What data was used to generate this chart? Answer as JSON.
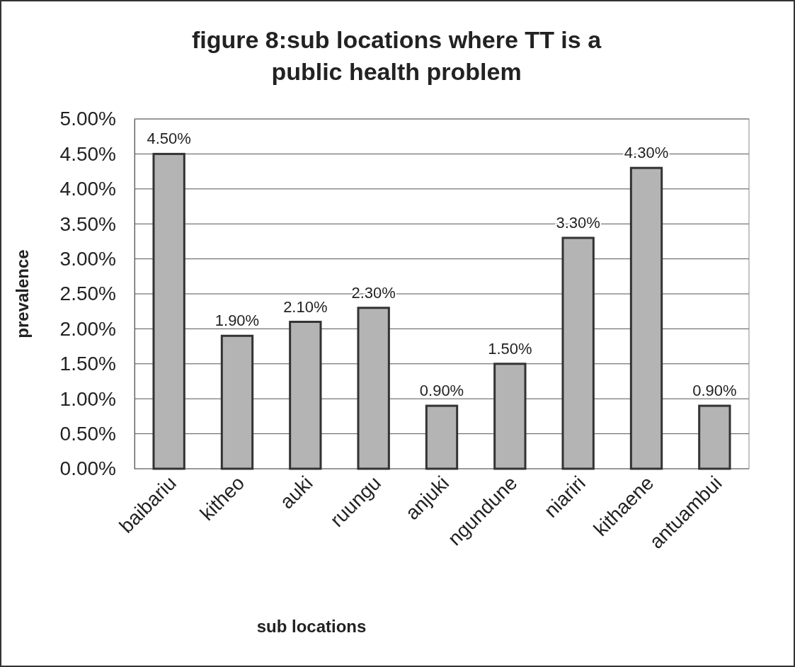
{
  "chart_data": {
    "type": "bar",
    "title": "figure 8:sub locations where TT is a public health problem",
    "xlabel": "sub locations",
    "ylabel": "prevalence",
    "categories": [
      "baibariu",
      "kitheo",
      "auki",
      "ruungu",
      "anjuki",
      "ngundune",
      "niariri",
      "kithaene",
      "antuambui"
    ],
    "values": [
      4.5,
      1.9,
      2.1,
      2.3,
      0.9,
      1.5,
      3.3,
      4.3,
      0.9
    ],
    "value_labels": [
      "4.50%",
      "1.90%",
      "2.10%",
      "2.30%",
      "0.90%",
      "1.50%",
      "3.30%",
      "4.30%",
      "0.90%"
    ],
    "color": "#b4b4b4",
    "ylim": [
      0,
      5
    ],
    "yticks": [
      {
        "value": 0,
        "label": "0.00%"
      },
      {
        "value": 0.5,
        "label": "0.50%"
      },
      {
        "value": 1,
        "label": "1.00%"
      },
      {
        "value": 1.5,
        "label": "1.50%"
      },
      {
        "value": 2,
        "label": "2.00%"
      },
      {
        "value": 2.5,
        "label": "2.50%"
      },
      {
        "value": 3,
        "label": "3.00%"
      },
      {
        "value": 3.5,
        "label": "3.50%"
      },
      {
        "value": 4,
        "label": "4.00%"
      },
      {
        "value": 4.5,
        "label": "4.50%"
      },
      {
        "value": 5,
        "label": "5.00%"
      }
    ],
    "grid": "y"
  }
}
